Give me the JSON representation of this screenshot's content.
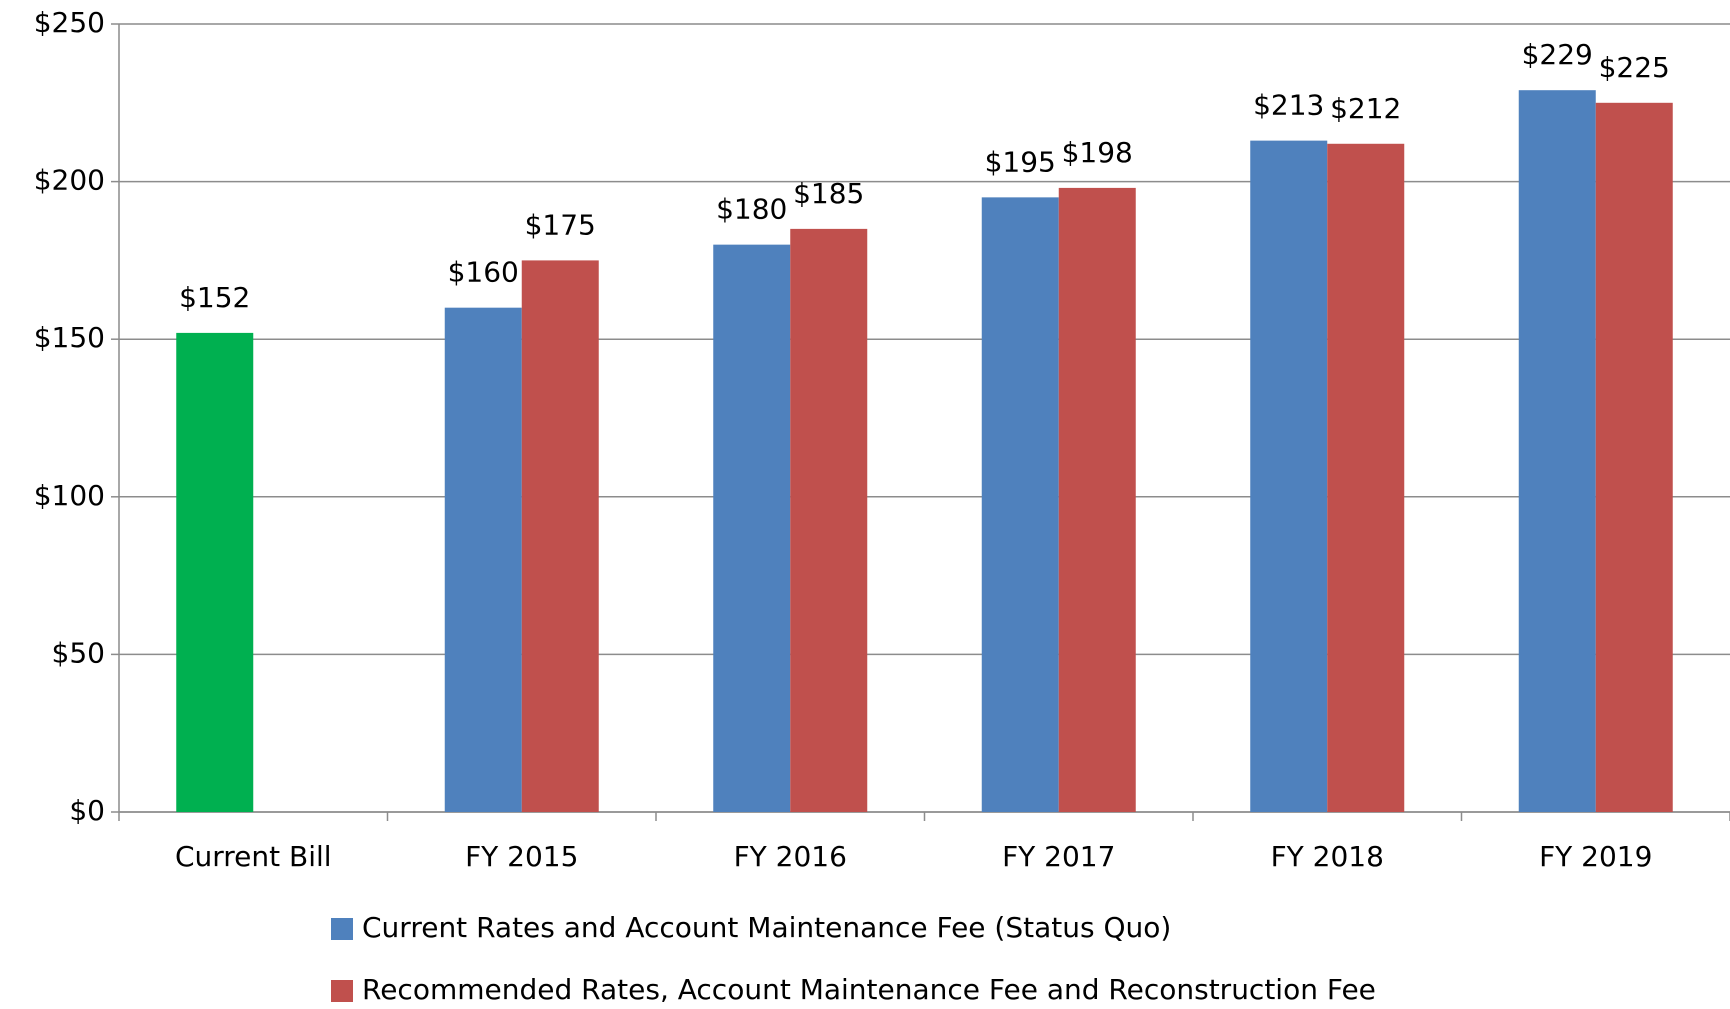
{
  "chart_data": {
    "type": "bar",
    "categories": [
      "Current Bill",
      "FY 2015",
      "FY 2016",
      "FY 2017",
      "FY 2018",
      "FY 2019"
    ],
    "series": [
      {
        "name": "Current Rates and Account Maintenance Fee (Status Quo)",
        "color": "#4f81bd",
        "values": [
          null,
          160,
          180,
          195,
          213,
          229
        ],
        "value_labels": [
          null,
          "$160",
          "$180",
          "$195",
          "$213",
          "$229"
        ]
      },
      {
        "name": "Recommended Rates, Account Maintenance Fee and Reconstruction Fee",
        "color": "#c0504d",
        "values": [
          null,
          175,
          185,
          198,
          212,
          225
        ],
        "value_labels": [
          null,
          "$175",
          "$185",
          "$198",
          "$212",
          "$225"
        ]
      },
      {
        "color": "#00b050",
        "values": [
          152,
          null,
          null,
          null,
          null,
          null
        ],
        "value_labels": [
          "$152",
          null,
          null,
          null,
          null,
          null
        ]
      }
    ],
    "ylim": [
      0,
      250
    ],
    "yticks": [
      {
        "value": 0,
        "label": "$0"
      },
      {
        "value": 50,
        "label": "$50"
      },
      {
        "value": 100,
        "label": "$100"
      },
      {
        "value": 150,
        "label": "$150"
      },
      {
        "value": 200,
        "label": "$200"
      },
      {
        "value": 250,
        "label": "$250"
      }
    ],
    "grid": true,
    "legend": "bottom"
  }
}
